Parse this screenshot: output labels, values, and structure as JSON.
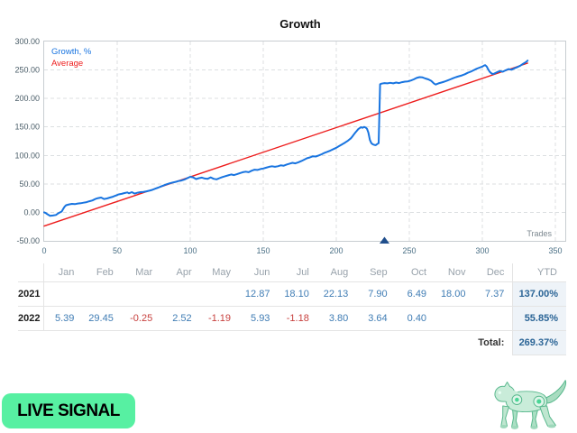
{
  "chart_data": {
    "type": "line",
    "title": "Growth",
    "xlabel": "Trades",
    "ylabel": "Growth, %",
    "xlim": [
      0,
      350
    ],
    "ylim": [
      -50,
      300
    ],
    "grid": true,
    "legend_position": "top-left",
    "x_ticks": [
      0,
      50,
      100,
      150,
      200,
      250,
      300,
      350
    ],
    "y_ticks": [
      300,
      250,
      200,
      150,
      100,
      50,
      0,
      -50
    ],
    "y_tick_labels": [
      "300.00",
      "250.00",
      "200.00",
      "150.00",
      "100.00",
      "50.00",
      "0.00",
      "-50.00"
    ],
    "colors": {
      "grid": "#dcdfe1",
      "border": "#c8cdd1",
      "y_label": "#4a5d68",
      "x_label": "#4a6f85",
      "axis_title": "#7d8890"
    },
    "series": [
      {
        "name": "Growth, %",
        "color": "#1874e0",
        "points": [
          [
            0,
            0
          ],
          [
            1,
            -1
          ],
          [
            2,
            -3
          ],
          [
            4,
            -6
          ],
          [
            6,
            -5.5
          ],
          [
            8,
            -4.5
          ],
          [
            10,
            -1
          ],
          [
            12,
            1.5
          ],
          [
            13,
            6
          ],
          [
            14,
            10
          ],
          [
            15,
            12.5
          ],
          [
            17,
            14
          ],
          [
            19,
            15
          ],
          [
            21,
            14.5
          ],
          [
            23,
            15.5
          ],
          [
            25,
            16
          ],
          [
            27,
            17
          ],
          [
            29,
            18
          ],
          [
            31,
            19.5
          ],
          [
            33,
            21
          ],
          [
            35,
            23.5
          ],
          [
            37,
            25
          ],
          [
            39,
            26
          ],
          [
            41,
            23.5
          ],
          [
            43,
            24.5
          ],
          [
            45,
            26
          ],
          [
            47,
            27.5
          ],
          [
            49,
            29.5
          ],
          [
            51,
            31.5
          ],
          [
            53,
            32.5
          ],
          [
            55,
            34
          ],
          [
            57,
            35
          ],
          [
            58,
            33.5
          ],
          [
            60,
            35.5
          ],
          [
            62,
            33
          ],
          [
            64,
            34.5
          ],
          [
            66,
            35.5
          ],
          [
            68,
            36
          ],
          [
            70,
            37
          ],
          [
            72,
            38
          ],
          [
            74,
            39.5
          ],
          [
            76,
            41.5
          ],
          [
            78,
            43.5
          ],
          [
            80,
            45.5
          ],
          [
            82,
            47.5
          ],
          [
            84,
            49.5
          ],
          [
            86,
            51
          ],
          [
            88,
            52.5
          ],
          [
            90,
            53.5
          ],
          [
            92,
            55
          ],
          [
            94,
            56
          ],
          [
            96,
            57.5
          ],
          [
            98,
            60
          ],
          [
            100,
            62.5
          ],
          [
            102,
            61.5
          ],
          [
            104,
            58.5
          ],
          [
            106,
            60
          ],
          [
            108,
            61
          ],
          [
            110,
            59.5
          ],
          [
            112,
            59
          ],
          [
            114,
            61.5
          ],
          [
            116,
            59
          ],
          [
            118,
            58
          ],
          [
            120,
            60
          ],
          [
            122,
            62
          ],
          [
            124,
            63.5
          ],
          [
            126,
            65
          ],
          [
            128,
            66.5
          ],
          [
            130,
            65.5
          ],
          [
            132,
            67
          ],
          [
            134,
            69
          ],
          [
            136,
            70.5
          ],
          [
            138,
            71.5
          ],
          [
            140,
            70.5
          ],
          [
            142,
            73
          ],
          [
            144,
            75
          ],
          [
            146,
            74.5
          ],
          [
            148,
            76
          ],
          [
            150,
            77
          ],
          [
            152,
            78.5
          ],
          [
            154,
            80
          ],
          [
            156,
            81
          ],
          [
            158,
            80
          ],
          [
            160,
            81
          ],
          [
            162,
            82.5
          ],
          [
            164,
            82
          ],
          [
            166,
            84
          ],
          [
            168,
            85.5
          ],
          [
            170,
            87
          ],
          [
            172,
            86
          ],
          [
            174,
            88
          ],
          [
            176,
            90
          ],
          [
            178,
            92.5
          ],
          [
            180,
            95
          ],
          [
            182,
            96.5
          ],
          [
            184,
            98.5
          ],
          [
            186,
            98
          ],
          [
            188,
            100
          ],
          [
            190,
            102
          ],
          [
            192,
            104.5
          ],
          [
            194,
            106.5
          ],
          [
            196,
            108.5
          ],
          [
            198,
            111
          ],
          [
            200,
            113.5
          ],
          [
            202,
            116.5
          ],
          [
            204,
            119.5
          ],
          [
            206,
            122.5
          ],
          [
            208,
            126
          ],
          [
            210,
            130
          ],
          [
            211,
            133
          ],
          [
            212,
            136.5
          ],
          [
            213,
            140
          ],
          [
            214,
            143
          ],
          [
            215,
            146
          ],
          [
            216,
            148
          ],
          [
            217,
            149.5
          ],
          [
            218,
            148.5
          ],
          [
            219,
            150
          ],
          [
            220,
            149
          ],
          [
            221,
            147
          ],
          [
            222,
            140
          ],
          [
            223,
            127
          ],
          [
            224,
            121.5
          ],
          [
            225,
            119.5
          ],
          [
            226,
            118.5
          ],
          [
            227,
            118
          ],
          [
            228,
            120
          ],
          [
            229,
            121.5
          ],
          [
            230,
            225
          ],
          [
            231,
            226
          ],
          [
            233,
            227
          ],
          [
            235,
            226.5
          ],
          [
            237,
            227.5
          ],
          [
            239,
            226.5
          ],
          [
            241,
            228
          ],
          [
            243,
            227
          ],
          [
            245,
            228.5
          ],
          [
            247,
            229.5
          ],
          [
            249,
            230
          ],
          [
            251,
            231.5
          ],
          [
            253,
            233.5
          ],
          [
            255,
            236
          ],
          [
            257,
            237.5
          ],
          [
            259,
            237
          ],
          [
            261,
            235
          ],
          [
            263,
            233.5
          ],
          [
            265,
            231
          ],
          [
            267,
            226
          ],
          [
            268,
            224.5
          ],
          [
            270,
            226.5
          ],
          [
            272,
            228
          ],
          [
            274,
            229.5
          ],
          [
            276,
            231.5
          ],
          [
            278,
            233.5
          ],
          [
            280,
            235.5
          ],
          [
            282,
            237.5
          ],
          [
            284,
            239
          ],
          [
            286,
            240.5
          ],
          [
            288,
            242.5
          ],
          [
            290,
            245
          ],
          [
            292,
            247
          ],
          [
            294,
            249.5
          ],
          [
            296,
            252
          ],
          [
            298,
            254
          ],
          [
            300,
            256
          ],
          [
            301,
            257.5
          ],
          [
            302,
            258.5
          ],
          [
            303,
            256
          ],
          [
            304,
            251
          ],
          [
            305,
            247
          ],
          [
            306,
            244.5
          ],
          [
            307,
            243
          ],
          [
            308,
            243.5
          ],
          [
            310,
            246
          ],
          [
            312,
            248
          ],
          [
            314,
            247
          ],
          [
            316,
            249.5
          ],
          [
            318,
            251.5
          ],
          [
            320,
            250.5
          ],
          [
            322,
            253
          ],
          [
            324,
            255
          ],
          [
            326,
            257.5
          ],
          [
            328,
            261
          ],
          [
            330,
            264
          ],
          [
            331,
            266.5
          ]
        ]
      },
      {
        "name": "Average",
        "color": "#ed1c1c",
        "points": [
          [
            0,
            -24
          ],
          [
            331,
            262
          ]
        ]
      }
    ],
    "markers": [
      {
        "shape": "triangle-up",
        "x": 233,
        "color": "#1f4e8c"
      }
    ]
  },
  "table": {
    "months": [
      "Jan",
      "Feb",
      "Mar",
      "Apr",
      "May",
      "Jun",
      "Jul",
      "Aug",
      "Sep",
      "Oct",
      "Nov",
      "Dec"
    ],
    "ytd_header": "YTD",
    "rows": [
      {
        "year": "2021",
        "values": [
          "",
          "",
          "",
          "",
          "",
          "12.87",
          "18.10",
          "22.13",
          "7.90",
          "6.49",
          "18.00",
          "7.37"
        ],
        "ytd": "137.00%"
      },
      {
        "year": "2022",
        "values": [
          "5.39",
          "29.45",
          "-0.25",
          "2.52",
          "-1.19",
          "5.93",
          "-1.18",
          "3.80",
          "3.64",
          "0.40",
          "",
          ""
        ],
        "ytd": "55.85%"
      }
    ],
    "total_label": "Total:",
    "total_value": "269.37%",
    "colors": {
      "positive": "#3f7cb4",
      "negative": "#c7403e",
      "ytd": "#2a6496",
      "ytd_bg": "#eef3f8",
      "header": "#98a2ab",
      "year": "#1c1c1c",
      "total_label": "#333333",
      "line": "#e4e4e4"
    }
  },
  "live_signal_button": {
    "label": "LIVE SIGNAL",
    "color": "#57F0A2"
  },
  "mascot": {
    "name": "robot-tiger"
  }
}
